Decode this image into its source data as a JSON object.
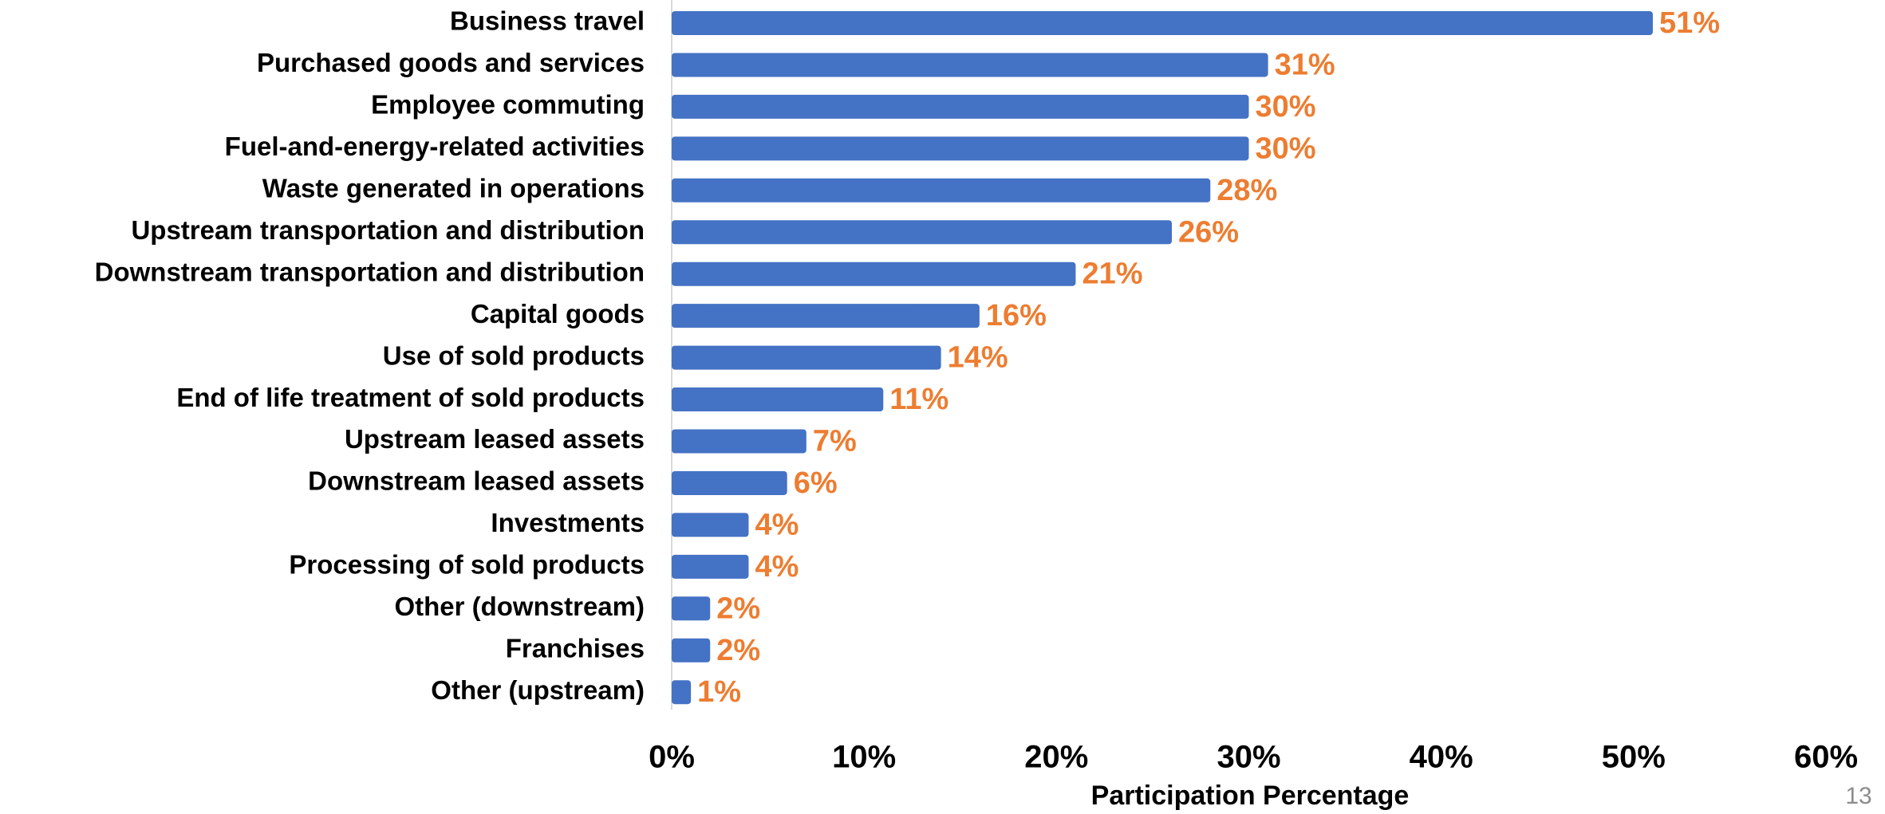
{
  "chart_data": {
    "type": "hbar",
    "categories": [
      "Business travel",
      "Purchased goods and services",
      "Employee commuting",
      "Fuel-and-energy-related activities",
      "Waste generated in operations",
      "Upstream transportation and distribution",
      "Downstream transportation and distribution",
      "Capital goods",
      "Use of sold products",
      "End of life treatment of sold products",
      "Upstream leased assets",
      "Downstream leased assets",
      "Investments",
      "Processing of sold products",
      "Other (downstream)",
      "Franchises",
      "Other (upstream)"
    ],
    "values": [
      51,
      31,
      30,
      30,
      28,
      26,
      21,
      16,
      14,
      11,
      7,
      6,
      4,
      4,
      2,
      2,
      1
    ],
    "value_labels": [
      "51%",
      "31%",
      "30%",
      "30%",
      "28%",
      "26%",
      "21%",
      "16%",
      "14%",
      "11%",
      "7%",
      "6%",
      "4%",
      "4%",
      "2%",
      "2%",
      "1%"
    ],
    "color": "#4472c4",
    "label_color": "#ed7d31",
    "xlabel": "Participation Percentage",
    "xlim": [
      0,
      60
    ],
    "xticks": [
      {
        "value": 0,
        "label": "0%"
      },
      {
        "value": 10,
        "label": "10%"
      },
      {
        "value": 20,
        "label": "20%"
      },
      {
        "value": 30,
        "label": "30%"
      },
      {
        "value": 40,
        "label": "40%"
      },
      {
        "value": 50,
        "label": "50%"
      },
      {
        "value": 60,
        "label": "60%"
      }
    ],
    "grid": false
  },
  "page_number": "13"
}
